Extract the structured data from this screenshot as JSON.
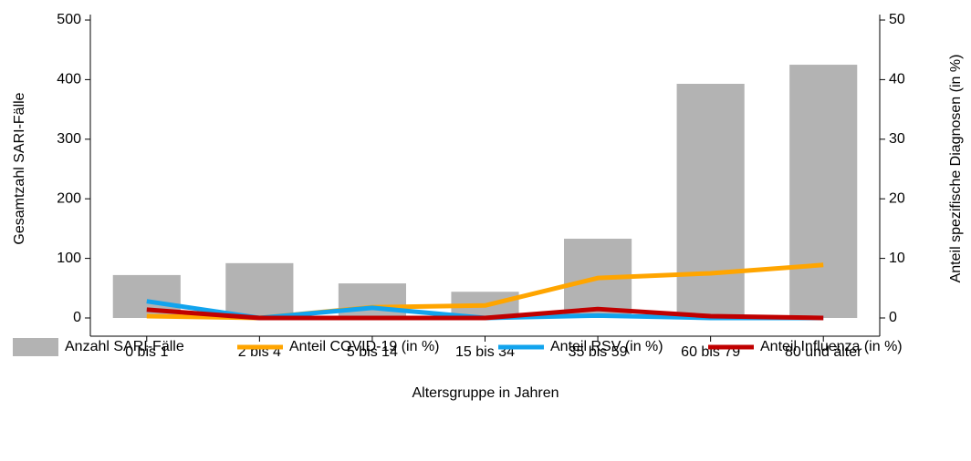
{
  "chart_data": {
    "type": "bar_line",
    "x_label": "Altersgruppe in Jahren",
    "y_label": "Gesamtzahl SARI-Fälle",
    "y2_label": "Anteil spezifische Diagnosen (in %)",
    "categories": [
      "0 bis 1",
      "2 bis 4",
      "5 bis 14",
      "15 bis 34",
      "35 bis 59",
      "60 bis 79",
      "80 und älter"
    ],
    "series": [
      {
        "name": "Anzahl SARI-Fälle",
        "type": "bar",
        "color": "#b3b3b3",
        "values": [
          72,
          92,
          58,
          44,
          133,
          393,
          425
        ]
      },
      {
        "name": "Anteil COVID-19 (in %)",
        "type": "line",
        "axis": "y2",
        "color": "#ffa500",
        "values": [
          0.3,
          0,
          1.8,
          2.1,
          6.7,
          7.5,
          8.9
        ]
      },
      {
        "name": "Anteil RSV (in %)",
        "type": "line",
        "axis": "y2",
        "color": "#12a4ee",
        "values": [
          2.8,
          0,
          1.7,
          0,
          0.4,
          0,
          0
        ]
      },
      {
        "name": "Anteil Influenza (in %)",
        "type": "line",
        "axis": "y2",
        "color": "#c00000",
        "values": [
          1.4,
          0,
          0,
          0,
          1.5,
          0.3,
          0
        ]
      }
    ],
    "ylim": [
      0,
      500
    ],
    "yticks": [
      0,
      100,
      200,
      300,
      400,
      500
    ],
    "y2lim": [
      0,
      50
    ],
    "y2ticks": [
      0,
      10,
      20,
      30,
      40,
      50
    ]
  }
}
